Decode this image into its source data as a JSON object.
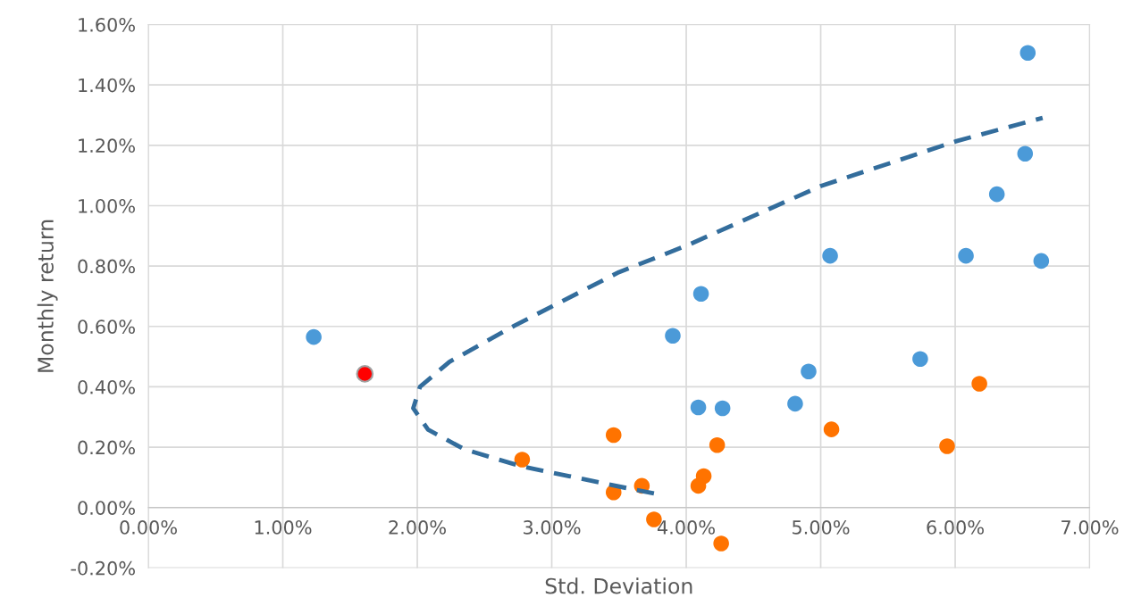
{
  "chart_data": {
    "type": "scatter",
    "xlabel": "Std. Deviation",
    "ylabel": "Monthly return",
    "xlim": [
      0,
      7
    ],
    "ylim": [
      -0.2,
      1.6
    ],
    "xticks": [
      {
        "value": 0,
        "label": "0.00%"
      },
      {
        "value": 1,
        "label": "1.00%"
      },
      {
        "value": 2,
        "label": "2.00%"
      },
      {
        "value": 3,
        "label": "3.00%"
      },
      {
        "value": 4,
        "label": "4.00%"
      },
      {
        "value": 5,
        "label": "5.00%"
      },
      {
        "value": 6,
        "label": "6.00%"
      },
      {
        "value": 7,
        "label": "7.00%"
      }
    ],
    "yticks": [
      {
        "value": -0.2,
        "label": "-0.20%"
      },
      {
        "value": 0,
        "label": "0.00%"
      },
      {
        "value": 0.2,
        "label": "0.20%"
      },
      {
        "value": 0.4,
        "label": "0.40%"
      },
      {
        "value": 0.6,
        "label": "0.60%"
      },
      {
        "value": 0.8,
        "label": "0.80%"
      },
      {
        "value": 1.0,
        "label": "1.00%"
      },
      {
        "value": 1.2,
        "label": "1.20%"
      },
      {
        "value": 1.4,
        "label": "1.40%"
      },
      {
        "value": 1.6,
        "label": "1.60%"
      }
    ],
    "grid": true,
    "marker": "circle",
    "series": [
      {
        "type": "line",
        "line_style": "dashed",
        "marker": "none",
        "color": "#336d9c",
        "x": [
          3.76,
          3.52,
          3.13,
          2.78,
          2.35,
          2.08,
          1.97,
          2.02,
          2.24,
          2.72,
          3.5,
          4.01,
          5.0,
          6.01,
          6.65
        ],
        "values": [
          0.047,
          0.068,
          0.104,
          0.136,
          0.193,
          0.258,
          0.329,
          0.4,
          0.483,
          0.602,
          0.78,
          0.869,
          1.065,
          1.214,
          1.291
        ]
      },
      {
        "color": "#4b9ad8",
        "x": [
          1.23,
          6.54,
          6.52,
          6.31,
          5.07,
          6.08,
          6.64,
          4.11,
          3.9,
          5.74,
          4.91,
          4.09,
          4.27,
          4.81
        ],
        "values": [
          0.565,
          1.506,
          1.172,
          1.038,
          0.834,
          0.834,
          0.817,
          0.708,
          0.569,
          0.492,
          0.451,
          0.332,
          0.329,
          0.344
        ]
      },
      {
        "color": "#ff7300",
        "x": [
          6.18,
          5.08,
          4.23,
          5.94,
          4.13,
          4.09,
          3.67,
          3.76,
          4.26,
          3.46,
          2.78,
          3.46
        ],
        "values": [
          0.41,
          0.259,
          0.207,
          0.203,
          0.104,
          0.072,
          0.072,
          -0.039,
          -0.119,
          0.24,
          0.159,
          0.05
        ]
      },
      {
        "color": "#ff0000",
        "x": [
          1.61
        ],
        "values": [
          0.443
        ]
      }
    ]
  }
}
